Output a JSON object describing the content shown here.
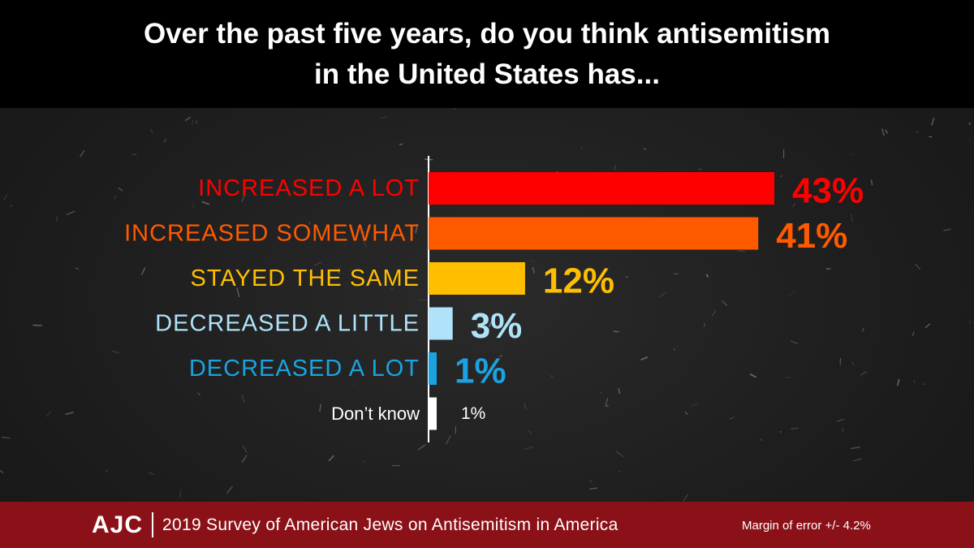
{
  "chart_data": {
    "type": "bar",
    "orientation": "horizontal",
    "title": "Over the past five years, do you think antisemitism in the United States has...",
    "title_lines": [
      "Over the past five years, do you think antisemitism",
      "in the United States has..."
    ],
    "categories": [
      "INCREASED A LOT",
      "INCREASED SOMEWHAT",
      "STAYED THE SAME",
      "DECREASED A LITTLE",
      "DECREASED A LOT",
      "Don’t know"
    ],
    "values": [
      43,
      41,
      12,
      3,
      1,
      1
    ],
    "value_labels": [
      "43%",
      "41%",
      "12%",
      "3%",
      "1%",
      "1%"
    ],
    "colors": [
      "#ff0000",
      "#ff5a00",
      "#ffbf00",
      "#aee3fa",
      "#1aa3e0",
      "#ffffff"
    ],
    "xlim": [
      0,
      43
    ],
    "xlabel": "",
    "ylabel": "",
    "grid": false,
    "legend": "none"
  },
  "footer": {
    "logo": "AJC",
    "survey": "2019 Survey of American Jews on Antisemitism in America",
    "margin_of_error": "Margin of error +/- 4.2%"
  }
}
